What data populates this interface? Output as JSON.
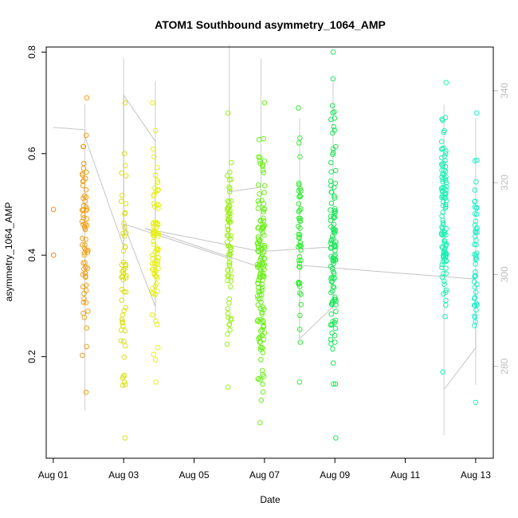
{
  "chart_data": {
    "type": "scatter",
    "title": "ATOM1 Southbound asymmetry_1064_AMP",
    "xlabel": "Date",
    "ylabel": "asymmetry_1064_AMP",
    "x_ticks": [
      "Aug 01",
      "Aug 03",
      "Aug 05",
      "Aug 07",
      "Aug 09",
      "Aug 11",
      "Aug 13"
    ],
    "xlim_days": [
      0.8,
      13.5
    ],
    "y_ticks": [
      0.2,
      0.4,
      0.6,
      0.8
    ],
    "ylim": [
      0.0,
      0.81
    ],
    "y2_ticks": [
      280,
      300,
      320,
      340
    ],
    "y2lim": [
      260.0,
      349.5
    ],
    "grid": false,
    "clusters": [
      {
        "day": 1.0,
        "spread": 0.02,
        "count": 2,
        "y_min": 0.4,
        "y_max": 0.49,
        "color": "#f28a1c"
      },
      {
        "day": 1.9,
        "spread": 0.09,
        "count": 70,
        "y_min": 0.13,
        "y_max": 0.71,
        "color": "#f0a01a"
      },
      {
        "day": 3.0,
        "spread": 0.07,
        "count": 55,
        "y_min": 0.04,
        "y_max": 0.7,
        "color": "#d9e01a"
      },
      {
        "day": 3.9,
        "spread": 0.09,
        "count": 80,
        "y_min": 0.15,
        "y_max": 0.7,
        "color": "#e6f01a"
      },
      {
        "day": 6.0,
        "spread": 0.06,
        "count": 70,
        "y_min": 0.14,
        "y_max": 0.68,
        "color": "#9cf01a"
      },
      {
        "day": 6.9,
        "spread": 0.11,
        "count": 140,
        "y_min": 0.07,
        "y_max": 0.7,
        "color": "#6cf01a"
      },
      {
        "day": 8.0,
        "spread": 0.04,
        "count": 50,
        "y_min": 0.15,
        "y_max": 0.69,
        "color": "#35ec35"
      },
      {
        "day": 8.95,
        "spread": 0.08,
        "count": 110,
        "y_min": 0.04,
        "y_max": 0.8,
        "color": "#1ee65a"
      },
      {
        "day": 12.1,
        "spread": 0.07,
        "count": 110,
        "y_min": 0.17,
        "y_max": 0.74,
        "color": "#1ef0b4"
      },
      {
        "day": 13.0,
        "spread": 0.04,
        "count": 50,
        "y_min": 0.11,
        "y_max": 0.68,
        "color": "#1ef0c8"
      }
    ],
    "right_axis_trace": [
      {
        "day": 1.0,
        "value": 332
      },
      {
        "day": 1.9,
        "value": 331.5
      },
      {
        "day": 1.9,
        "value": 330
      },
      {
        "day": 3.0,
        "value": 306
      },
      {
        "day": 3.0,
        "value": 339
      },
      {
        "day": 3.9,
        "value": 329
      },
      {
        "day": 3.9,
        "value": 293
      },
      {
        "day": 3.0,
        "value": 311
      },
      {
        "day": 6.0,
        "value": 303.5
      },
      {
        "day": 6.0,
        "value": 318
      },
      {
        "day": 6.9,
        "value": 319
      },
      {
        "day": 6.9,
        "value": 301.5
      },
      {
        "day": 3.6,
        "value": 310
      },
      {
        "day": 6.9,
        "value": 305
      },
      {
        "day": 8.95,
        "value": 306
      },
      {
        "day": 8.95,
        "value": 293
      },
      {
        "day": 8.0,
        "value": 286
      },
      {
        "day": 8.0,
        "value": 302
      },
      {
        "day": 13.0,
        "value": 299
      },
      {
        "day": 13.0,
        "value": 284
      },
      {
        "day": 12.1,
        "value": 275
      }
    ],
    "right_axis_ranges": [
      {
        "day": 1.9,
        "low": 270.5,
        "high": 337
      },
      {
        "day": 3.0,
        "low": 294,
        "high": 347
      },
      {
        "day": 3.9,
        "low": 290,
        "high": 342
      },
      {
        "day": 6.0,
        "low": 304,
        "high": 350
      },
      {
        "day": 6.9,
        "low": 296,
        "high": 347
      },
      {
        "day": 8.0,
        "low": 291,
        "high": 334
      },
      {
        "day": 8.95,
        "low": 292,
        "high": 342
      },
      {
        "day": 12.1,
        "low": 265,
        "high": 337
      },
      {
        "day": 13.0,
        "low": 276,
        "high": 334
      }
    ]
  }
}
